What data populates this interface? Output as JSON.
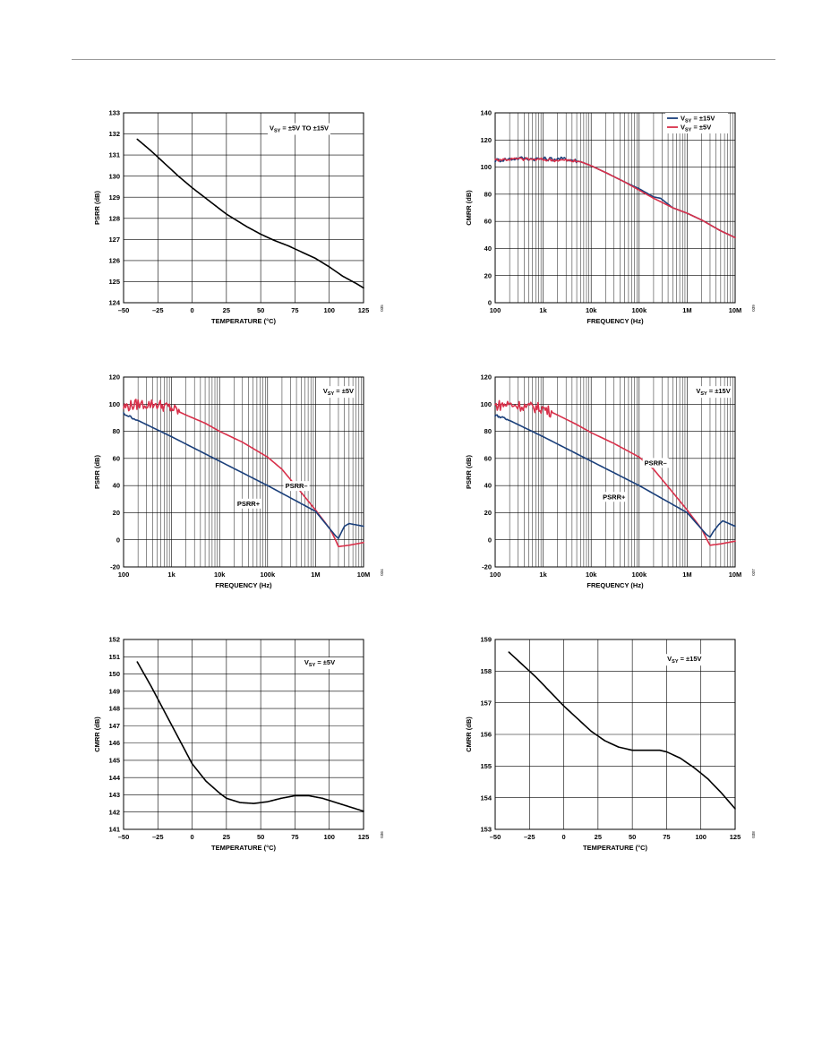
{
  "chart_data": [
    {
      "id": "c1",
      "type": "line",
      "xlabel": "TEMPERATURE (°C)",
      "ylabel": "PSRR (dB)",
      "xscale": "linear",
      "xlim": [
        -50,
        125
      ],
      "ylim": [
        124,
        133
      ],
      "xticks": [
        -50,
        -25,
        0,
        25,
        50,
        75,
        100,
        125
      ],
      "xtick_labels": [
        "–50",
        "–25",
        "0",
        "25",
        "50",
        "75",
        "100",
        "125"
      ],
      "yticks": [
        124,
        125,
        126,
        127,
        128,
        129,
        130,
        131,
        132,
        133
      ],
      "grid": true,
      "fig_label": "035",
      "annotations": [
        {
          "text": "V",
          "sub": "SY",
          "rest": " = ±5V TO ±15V",
          "x": 78,
          "y": 132.3
        }
      ],
      "series": [
        {
          "color": "#000000",
          "points": [
            [
              -40,
              131.75
            ],
            [
              -30,
              131.2
            ],
            [
              -20,
              130.6
            ],
            [
              -10,
              130.0
            ],
            [
              0,
              129.45
            ],
            [
              10,
              128.95
            ],
            [
              20,
              128.45
            ],
            [
              25,
              128.2
            ],
            [
              30,
              128.0
            ],
            [
              40,
              127.6
            ],
            [
              50,
              127.25
            ],
            [
              60,
              126.95
            ],
            [
              70,
              126.7
            ],
            [
              80,
              126.4
            ],
            [
              90,
              126.1
            ],
            [
              100,
              125.7
            ],
            [
              110,
              125.25
            ],
            [
              120,
              124.9
            ],
            [
              125,
              124.7
            ]
          ]
        }
      ]
    },
    {
      "id": "c2",
      "type": "line",
      "xlabel": "FREQUENCY (Hz)",
      "ylabel": "CMRR (dB)",
      "xscale": "log",
      "xlim": [
        100,
        10000000
      ],
      "ylim": [
        0,
        140
      ],
      "xticks": [
        100,
        1000,
        10000,
        100000,
        1000000,
        10000000
      ],
      "xtick_labels": [
        "100",
        "1k",
        "10k",
        "100k",
        "1M",
        "10M"
      ],
      "yticks": [
        0,
        20,
        40,
        60,
        80,
        100,
        120,
        140
      ],
      "grid": true,
      "fig_label": "039",
      "legend": [
        {
          "text": "V",
          "sub": "SY",
          "rest": " = ±15V",
          "color": "#1a3f7a"
        },
        {
          "text": "V",
          "sub": "SY",
          "rest": " = ±5V",
          "color": "#d8304a"
        }
      ],
      "series": [
        {
          "color": "#1a3f7a",
          "noise": 1.5,
          "noise_until": 5000,
          "points": [
            [
              100,
              105
            ],
            [
              300,
              106.5
            ],
            [
              1000,
              106
            ],
            [
              3000,
              106
            ],
            [
              6000,
              104
            ],
            [
              10000,
              101
            ],
            [
              20000,
              96
            ],
            [
              50000,
              89
            ],
            [
              100000,
              84
            ],
            [
              200000,
              78
            ],
            [
              280000,
              77
            ],
            [
              330000,
              75
            ],
            [
              500000,
              70
            ],
            [
              1000000,
              66
            ],
            [
              2000000,
              61
            ],
            [
              5000000,
              53
            ],
            [
              10000000,
              48
            ]
          ]
        },
        {
          "color": "#d8304a",
          "noise": 1.2,
          "noise_until": 5000,
          "points": [
            [
              100,
              105.5
            ],
            [
              300,
              106
            ],
            [
              1000,
              105.5
            ],
            [
              3000,
              105
            ],
            [
              6000,
              104
            ],
            [
              10000,
              101
            ],
            [
              20000,
              96
            ],
            [
              50000,
              89
            ],
            [
              100000,
              83
            ],
            [
              200000,
              77
            ],
            [
              300000,
              74
            ],
            [
              500000,
              70
            ],
            [
              1000000,
              66
            ],
            [
              2000000,
              61
            ],
            [
              5000000,
              53
            ],
            [
              10000000,
              48
            ]
          ]
        }
      ]
    },
    {
      "id": "c3",
      "type": "line",
      "xlabel": "FREQUENCY (Hz)",
      "ylabel": "PSRR (dB)",
      "xscale": "log",
      "xlim": [
        100,
        10000000
      ],
      "ylim": [
        -20,
        120
      ],
      "xticks": [
        100,
        1000,
        10000,
        100000,
        1000000,
        10000000
      ],
      "xtick_labels": [
        "100",
        "1k",
        "10k",
        "100k",
        "1M",
        "10M"
      ],
      "yticks": [
        -20,
        0,
        20,
        40,
        60,
        80,
        100,
        120
      ],
      "grid": true,
      "fig_label": "034",
      "annotations": [
        {
          "text": "V",
          "sub": "SY",
          "rest": " = ±5V",
          "x": 3000000,
          "y": 110
        },
        {
          "text": "PSRR–",
          "x": 400000,
          "y": 40
        },
        {
          "text": "PSRR+",
          "x": 40000,
          "y": 27
        }
      ],
      "series": [
        {
          "color": "#d8304a",
          "noise": 4,
          "noise_until": 1500,
          "points": [
            [
              100,
              98
            ],
            [
              200,
              100
            ],
            [
              500,
              100
            ],
            [
              1000,
              97
            ],
            [
              2000,
              92
            ],
            [
              5000,
              86
            ],
            [
              10000,
              80
            ],
            [
              30000,
              72
            ],
            [
              100000,
              61
            ],
            [
              200000,
              52
            ],
            [
              500000,
              35
            ],
            [
              1000000,
              22
            ],
            [
              2000000,
              8
            ],
            [
              2600000,
              0
            ],
            [
              3000000,
              -5
            ],
            [
              5000000,
              -4
            ],
            [
              10000000,
              -2
            ]
          ]
        },
        {
          "color": "#1a3f7a",
          "noise": 0.8,
          "noise_until": 200,
          "points": [
            [
              100,
              93
            ],
            [
              200,
              88
            ],
            [
              1000,
              76
            ],
            [
              10000,
              58
            ],
            [
              100000,
              40
            ],
            [
              1000000,
              21
            ],
            [
              2600000,
              3
            ],
            [
              3000000,
              1
            ],
            [
              3500000,
              6
            ],
            [
              4000000,
              10
            ],
            [
              5000000,
              12
            ],
            [
              10000000,
              10
            ]
          ]
        }
      ]
    },
    {
      "id": "c4",
      "type": "line",
      "xlabel": "FREQUENCY (Hz)",
      "ylabel": "PSRR (dB)",
      "xscale": "log",
      "xlim": [
        100,
        10000000
      ],
      "ylim": [
        -20,
        120
      ],
      "xticks": [
        100,
        1000,
        10000,
        100000,
        1000000,
        10000000
      ],
      "xtick_labels": [
        "100",
        "1k",
        "10k",
        "100k",
        "1M",
        "10M"
      ],
      "yticks": [
        -20,
        0,
        20,
        40,
        60,
        80,
        100,
        120
      ],
      "grid": true,
      "fig_label": "037",
      "annotations": [
        {
          "text": "V",
          "sub": "SY",
          "rest": " = ±15V",
          "x": 3500000,
          "y": 110
        },
        {
          "text": "PSRR–",
          "x": 220000,
          "y": 57
        },
        {
          "text": "PSRR+",
          "x": 30000,
          "y": 32
        }
      ],
      "series": [
        {
          "color": "#d8304a",
          "noise": 4,
          "noise_until": 1500,
          "points": [
            [
              100,
              99
            ],
            [
              200,
              100
            ],
            [
              500,
              98
            ],
            [
              1000,
              97
            ],
            [
              2000,
              92
            ],
            [
              5000,
              85
            ],
            [
              10000,
              79
            ],
            [
              30000,
              71
            ],
            [
              100000,
              61
            ],
            [
              200000,
              52
            ],
            [
              500000,
              35
            ],
            [
              1000000,
              22
            ],
            [
              2000000,
              8
            ],
            [
              2600000,
              0
            ],
            [
              3000000,
              -4
            ],
            [
              5000000,
              -3
            ],
            [
              10000000,
              -1
            ]
          ]
        },
        {
          "color": "#1a3f7a",
          "noise": 0.8,
          "noise_until": 200,
          "points": [
            [
              100,
              92
            ],
            [
              200,
              88
            ],
            [
              1000,
              76
            ],
            [
              10000,
              58
            ],
            [
              100000,
              40
            ],
            [
              1000000,
              20
            ],
            [
              2500000,
              4
            ],
            [
              3000000,
              2
            ],
            [
              3500000,
              6
            ],
            [
              4500000,
              11
            ],
            [
              5500000,
              14
            ],
            [
              10000000,
              10
            ]
          ]
        }
      ]
    },
    {
      "id": "c5",
      "type": "line",
      "xlabel": "TEMPERATURE (°C)",
      "ylabel": "CMRR (dB)",
      "xscale": "linear",
      "xlim": [
        -50,
        125
      ],
      "ylim": [
        141,
        152
      ],
      "xticks": [
        -50,
        -25,
        0,
        25,
        50,
        75,
        100,
        125
      ],
      "xtick_labels": [
        "–50",
        "–25",
        "0",
        "25",
        "50",
        "75",
        "100",
        "125"
      ],
      "yticks": [
        141,
        142,
        143,
        144,
        145,
        146,
        147,
        148,
        149,
        150,
        151,
        152
      ],
      "grid": true,
      "fig_label": "036",
      "annotations": [
        {
          "text": "V",
          "sub": "SY",
          "rest": " = ±5V",
          "x": 93,
          "y": 150.7
        }
      ],
      "series": [
        {
          "color": "#000000",
          "points": [
            [
              -40,
              150.7
            ],
            [
              -30,
              149.3
            ],
            [
              -20,
              147.8
            ],
            [
              -10,
              146.3
            ],
            [
              0,
              144.8
            ],
            [
              10,
              143.8
            ],
            [
              20,
              143.1
            ],
            [
              25,
              142.8
            ],
            [
              35,
              142.55
            ],
            [
              45,
              142.5
            ],
            [
              55,
              142.6
            ],
            [
              65,
              142.8
            ],
            [
              75,
              142.95
            ],
            [
              85,
              142.95
            ],
            [
              95,
              142.8
            ],
            [
              105,
              142.55
            ],
            [
              115,
              142.3
            ],
            [
              125,
              142.05
            ]
          ]
        }
      ]
    },
    {
      "id": "c6",
      "type": "line",
      "xlabel": "TEMPERATURE (°C)",
      "ylabel": "CMRR (dB)",
      "xscale": "linear",
      "xlim": [
        -50,
        125
      ],
      "ylim": [
        153,
        159
      ],
      "xticks": [
        -50,
        -25,
        0,
        25,
        50,
        75,
        100,
        125
      ],
      "xtick_labels": [
        "–50",
        "–25",
        "0",
        "25",
        "50",
        "75",
        "100",
        "125"
      ],
      "yticks": [
        153,
        154,
        155,
        156,
        157,
        158,
        159
      ],
      "grid": true,
      "fig_label": "038",
      "annotations": [
        {
          "text": "V",
          "sub": "SY",
          "rest": " = ±15V",
          "x": 88,
          "y": 158.4
        }
      ],
      "series": [
        {
          "color": "#000000",
          "points": [
            [
              -40,
              158.6
            ],
            [
              -30,
              158.2
            ],
            [
              -20,
              157.8
            ],
            [
              -10,
              157.35
            ],
            [
              0,
              156.9
            ],
            [
              10,
              156.5
            ],
            [
              20,
              156.1
            ],
            [
              30,
              155.8
            ],
            [
              40,
              155.6
            ],
            [
              50,
              155.5
            ],
            [
              60,
              155.5
            ],
            [
              70,
              155.5
            ],
            [
              75,
              155.45
            ],
            [
              85,
              155.25
            ],
            [
              95,
              154.95
            ],
            [
              105,
              154.6
            ],
            [
              115,
              154.15
            ],
            [
              125,
              153.65
            ]
          ]
        }
      ]
    }
  ]
}
